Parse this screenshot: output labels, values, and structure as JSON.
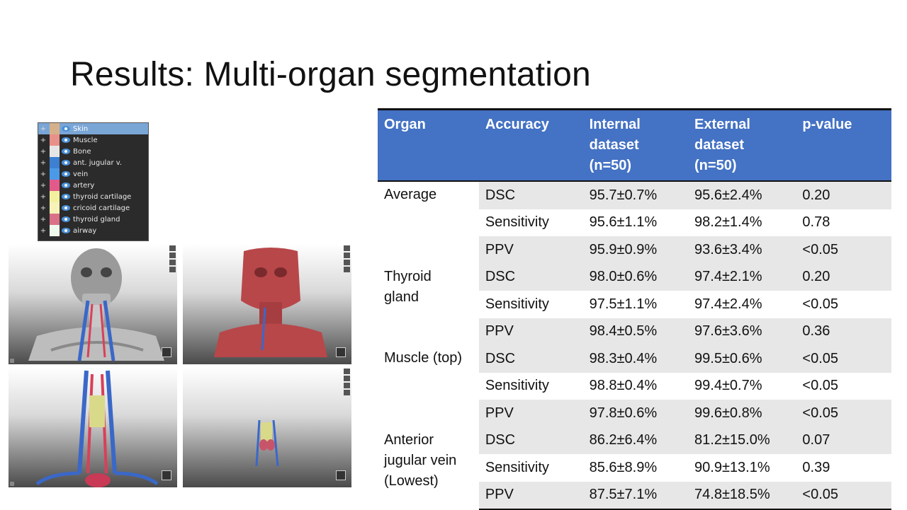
{
  "slide": {
    "title": "Results: Multi-organ segmentation"
  },
  "legend": {
    "items": [
      {
        "label": "Skin",
        "color": "#d6b08a",
        "selected": true
      },
      {
        "label": "Muscle",
        "color": "#e8908a",
        "selected": false
      },
      {
        "label": "Bone",
        "color": "#e6e6e6",
        "selected": false
      },
      {
        "label": "ant. jugular v.",
        "color": "#3d7fd1",
        "selected": false
      },
      {
        "label": "vein",
        "color": "#4a9ae8",
        "selected": false
      },
      {
        "label": "artery",
        "color": "#e25a8a",
        "selected": false
      },
      {
        "label": "thyroid cartilage",
        "color": "#f3f0a0",
        "selected": false
      },
      {
        "label": "cricoid cartilage",
        "color": "#f6f2b8",
        "selected": false
      },
      {
        "label": "thyroid gland",
        "color": "#d97088",
        "selected": false
      },
      {
        "label": "airway",
        "color": "#eef8ec",
        "selected": false
      }
    ]
  },
  "table": {
    "headers": [
      "Organ",
      "Accuracy",
      "Internal dataset (n=50)",
      "External dataset (n=50)",
      "p-value"
    ],
    "header_lines": [
      [
        "Organ"
      ],
      [
        "Accuracy"
      ],
      [
        "Internal",
        "dataset",
        "(n=50)"
      ],
      [
        "External",
        "dataset",
        "(n=50)"
      ],
      [
        "p-value"
      ]
    ],
    "groups": [
      {
        "organ": [
          "Average"
        ],
        "rows": [
          {
            "metric": "DSC",
            "internal": "95.7±0.7%",
            "external": "95.6±2.4%",
            "p": "0.20"
          },
          {
            "metric": "Sensitivity",
            "internal": "95.6±1.1%",
            "external": "98.2±1.4%",
            "p": "0.78"
          },
          {
            "metric": "PPV",
            "internal": "95.9±0.9%",
            "external": "93.6±3.4%",
            "p": "<0.05"
          }
        ]
      },
      {
        "organ": [
          "Thyroid",
          "gland"
        ],
        "rows": [
          {
            "metric": "DSC",
            "internal": "98.0±0.6%",
            "external": "97.4±2.1%",
            "p": "0.20"
          },
          {
            "metric": "Sensitivity",
            "internal": "97.5±1.1%",
            "external": "97.4±2.4%",
            "p": "<0.05"
          },
          {
            "metric": "PPV",
            "internal": "98.4±0.5%",
            "external": "97.6±3.6%",
            "p": "0.36"
          }
        ]
      },
      {
        "organ": [
          "Muscle (top)"
        ],
        "rows": [
          {
            "metric": "DSC",
            "internal": "98.3±0.4%",
            "external": "99.5±0.6%",
            "p": "<0.05"
          },
          {
            "metric": "Sensitivity",
            "internal": "98.8±0.4%",
            "external": "99.4±0.7%",
            "p": "<0.05"
          },
          {
            "metric": "PPV",
            "internal": "97.8±0.6%",
            "external": "99.6±0.8%",
            "p": "<0.05"
          }
        ]
      },
      {
        "organ": [
          "Anterior",
          "jugular vein",
          "(Lowest)"
        ],
        "rows": [
          {
            "metric": "DSC",
            "internal": "86.2±6.4%",
            "external": "81.2±15.0%",
            "p": "0.07"
          },
          {
            "metric": "Sensitivity",
            "internal": "85.6±8.9%",
            "external": "90.9±13.1%",
            "p": "0.39"
          },
          {
            "metric": "PPV",
            "internal": "87.5±7.1%",
            "external": "74.8±18.5%",
            "p": "<0.05"
          }
        ]
      }
    ]
  },
  "colors": {
    "header_bg": "#4472c4",
    "row_shade": "#e7e7e7"
  }
}
